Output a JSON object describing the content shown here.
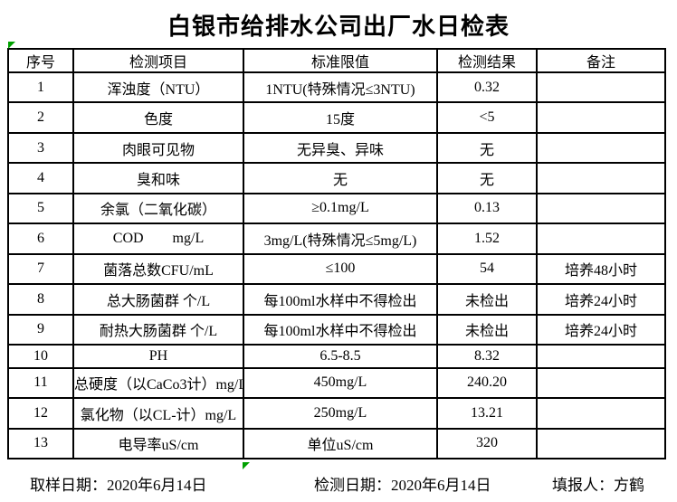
{
  "title": "白银市给排水公司出厂水日检表",
  "colors": {
    "background": "#ffffff",
    "text": "#000000",
    "border": "#000000",
    "marker_green": "#00a000"
  },
  "table": {
    "headers": [
      "序号",
      "检测项目",
      "标准限值",
      "检测结果",
      "备注"
    ],
    "rows": [
      {
        "no": "1",
        "item": "浑浊度（NTU）",
        "limit": "1NTU(特殊情况≤3NTU)",
        "result": "0.32",
        "note": ""
      },
      {
        "no": "2",
        "item": "色度",
        "limit": "15度",
        "result": "<5",
        "note": ""
      },
      {
        "no": "3",
        "item": "肉眼可见物",
        "limit": "无异臭、异味",
        "result": "无",
        "note": ""
      },
      {
        "no": "4",
        "item": "臭和味",
        "limit": "无",
        "result": "无",
        "note": ""
      },
      {
        "no": "5",
        "item": "余氯（二氧化碳）",
        "limit": "≥0.1mg/L",
        "result": "0.13",
        "note": ""
      },
      {
        "no": "6",
        "item": "COD        mg/L",
        "limit": "3mg/L(特殊情况≤5mg/L)",
        "result": "1.52",
        "note": ""
      },
      {
        "no": "7",
        "item": "菌落总数CFU/mL",
        "limit": "≤100",
        "result": "54",
        "note": "培养48小时"
      },
      {
        "no": "8",
        "item": "总大肠菌群 个/L",
        "limit": "每100ml水样中不得检出",
        "result": "未检出",
        "note": "培养24小时"
      },
      {
        "no": "9",
        "item": "耐热大肠菌群 个/L",
        "limit": "每100ml水样中不得检出",
        "result": "未检出",
        "note": "培养24小时"
      },
      {
        "no": "10",
        "item": "PH",
        "limit": "6.5-8.5",
        "result": "8.32",
        "note": ""
      },
      {
        "no": "11",
        "item": "总硬度（以CaCo3计）mg/L",
        "limit": "450mg/L",
        "result": "240.20",
        "note": ""
      },
      {
        "no": "12",
        "item": "氯化物（以CL-计）mg/L",
        "limit": "250mg/L",
        "result": "13.21",
        "note": ""
      },
      {
        "no": "13",
        "item": "电导率uS/cm",
        "limit": "单位uS/cm",
        "result": "320",
        "note": ""
      }
    ]
  },
  "footer": {
    "sampling_date": "取样日期：2020年6月14日",
    "testing_date": "检测日期：2020年6月14日",
    "reporter": "填报人：方鹤"
  }
}
